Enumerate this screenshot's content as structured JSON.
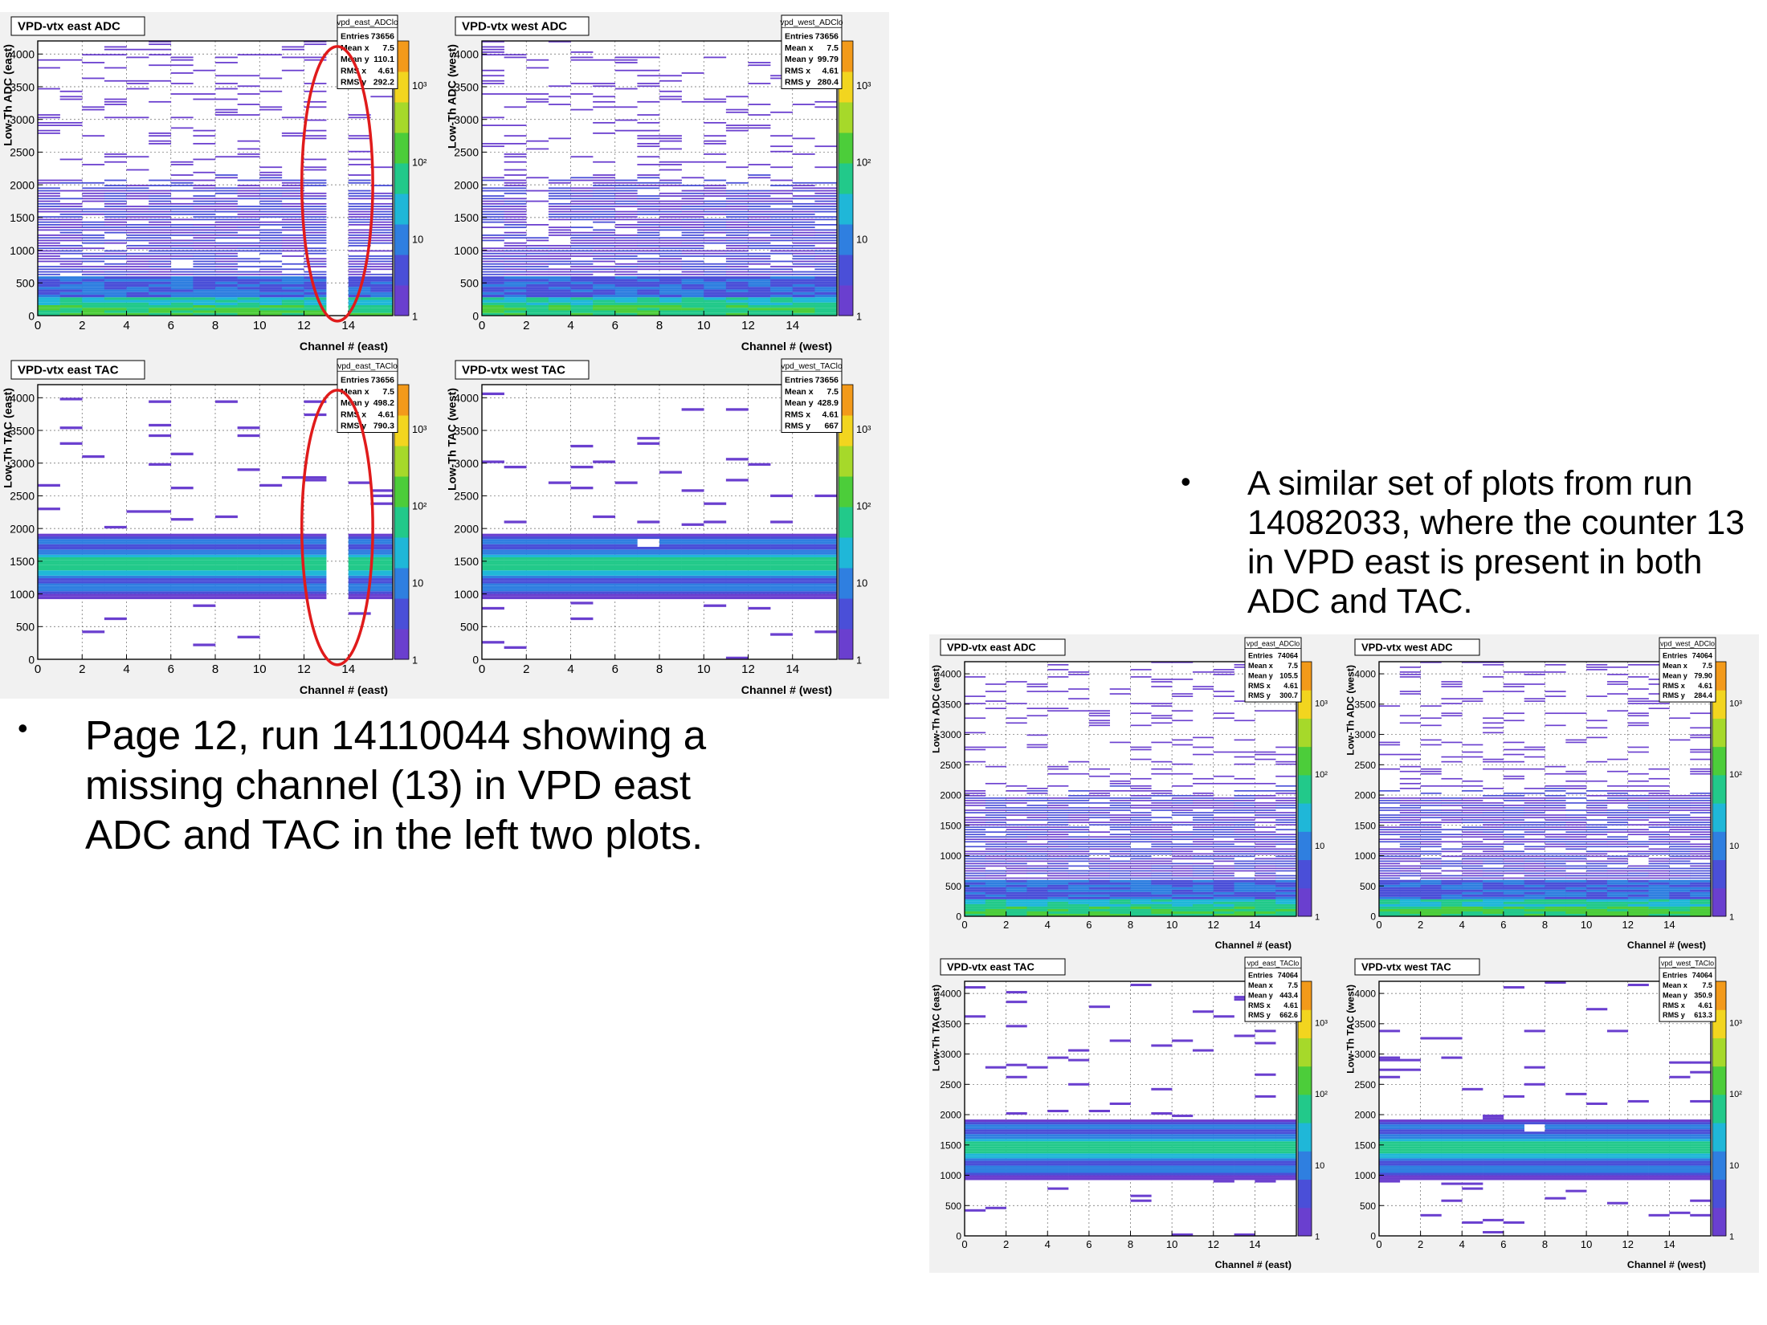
{
  "notes": {
    "left": {
      "bullet": "•",
      "text": "Page 12, run 14110044 showing a missing channel (13) in VPD east ADC and TAC in the left two plots."
    },
    "right": {
      "bullet": "•",
      "text": "A similar set of plots from run 14082033, where the counter 13 in VPD east is present in both ADC and TAC."
    }
  },
  "colors": {
    "figure_background": "#f1f1f1",
    "highlight_ellipse": "#e01b1b",
    "palette": [
      "#6a3fcf",
      "#4a4fd8",
      "#2f7fe0",
      "#1fb7d8",
      "#22c98a",
      "#4ccd3a",
      "#a6d92a",
      "#f2d51f",
      "#f39a1a"
    ]
  },
  "chart_data": [
    {
      "type": "heatmap",
      "figure": "left",
      "title": "VPD-vtx east ADC",
      "stats": {
        "name": "vpd_east_ADClo",
        "rows": [
          [
            "Entries",
            "73656"
          ],
          [
            "Mean x",
            "7.5"
          ],
          [
            "Mean y",
            "110.1"
          ],
          [
            "RMS x",
            "4.61"
          ],
          [
            "RMS y",
            "292.2"
          ]
        ]
      },
      "xlabel": "Channel # (east)",
      "ylabel": "Low-Th ADC (east)",
      "x_ticks": [
        "0",
        "2",
        "4",
        "6",
        "8",
        "10",
        "12",
        "14"
      ],
      "y_ticks": [
        "0",
        "500",
        "1000",
        "1500",
        "2000",
        "2500",
        "3000",
        "3500",
        "4000"
      ],
      "xlim": [
        0,
        16
      ],
      "ylim": [
        0,
        4200
      ],
      "z_ticks": [
        "1",
        "10",
        "10²",
        "10³"
      ],
      "pattern": "adc",
      "empty_channels": [
        13
      ],
      "highlight_channel": 13,
      "seed": 11
    },
    {
      "type": "heatmap",
      "figure": "left",
      "title": "VPD-vtx west ADC",
      "stats": {
        "name": "vpd_west_ADClo",
        "rows": [
          [
            "Entries",
            "73656"
          ],
          [
            "Mean x",
            "7.5"
          ],
          [
            "Mean y",
            "99.79"
          ],
          [
            "RMS x",
            "4.61"
          ],
          [
            "RMS y",
            "280.4"
          ]
        ]
      },
      "xlabel": "Channel # (west)",
      "ylabel": "Low-Th ADC (west)",
      "x_ticks": [
        "0",
        "2",
        "4",
        "6",
        "8",
        "10",
        "12",
        "14"
      ],
      "y_ticks": [
        "0",
        "500",
        "1000",
        "1500",
        "2000",
        "2500",
        "3000",
        "3500",
        "4000"
      ],
      "xlim": [
        0,
        16
      ],
      "ylim": [
        0,
        4200
      ],
      "z_ticks": [
        "1",
        "10",
        "10²",
        "10³"
      ],
      "pattern": "adc",
      "empty_channels": [],
      "notch_channel": 2,
      "seed": 23
    },
    {
      "type": "heatmap",
      "figure": "left",
      "title": "VPD-vtx east TAC",
      "stats": {
        "name": "vpd_east_TAClo",
        "rows": [
          [
            "Entries",
            "73656"
          ],
          [
            "Mean x",
            "7.5"
          ],
          [
            "Mean y",
            "498.2"
          ],
          [
            "RMS x",
            "4.61"
          ],
          [
            "RMS y",
            "790.3"
          ]
        ]
      },
      "xlabel": "Channel # (east)",
      "ylabel": "Low-Th TAC (east)",
      "x_ticks": [
        "0",
        "2",
        "4",
        "6",
        "8",
        "10",
        "12",
        "14"
      ],
      "y_ticks": [
        "0",
        "500",
        "1000",
        "1500",
        "2000",
        "2500",
        "3000",
        "3500",
        "4000"
      ],
      "xlim": [
        0,
        16
      ],
      "ylim": [
        0,
        4200
      ],
      "z_ticks": [
        "1",
        "10",
        "10²",
        "10³"
      ],
      "pattern": "tac",
      "empty_channels": [
        13
      ],
      "highlight_channel": 13,
      "seed": 37
    },
    {
      "type": "heatmap",
      "figure": "left",
      "title": "VPD-vtx west TAC",
      "stats": {
        "name": "vpd_west_TAClo",
        "rows": [
          [
            "Entries",
            "73656"
          ],
          [
            "Mean x",
            "7.5"
          ],
          [
            "Mean y",
            "428.9"
          ],
          [
            "RMS x",
            "4.61"
          ],
          [
            "RMS y",
            "667"
          ]
        ]
      },
      "xlabel": "Channel # (west)",
      "ylabel": "Low-Th TAC (west)",
      "x_ticks": [
        "0",
        "2",
        "4",
        "6",
        "8",
        "10",
        "12",
        "14"
      ],
      "y_ticks": [
        "0",
        "500",
        "1000",
        "1500",
        "2000",
        "2500",
        "3000",
        "3500",
        "4000"
      ],
      "xlim": [
        0,
        16
      ],
      "ylim": [
        0,
        4200
      ],
      "z_ticks": [
        "1",
        "10",
        "10²",
        "10³"
      ],
      "pattern": "tac",
      "empty_channels": [],
      "notch_channel": 7,
      "seed": 41
    },
    {
      "type": "heatmap",
      "figure": "right",
      "title": "VPD-vtx east ADC",
      "stats": {
        "name": "vpd_east_ADClo",
        "rows": [
          [
            "Entries",
            "74064"
          ],
          [
            "Mean x",
            "7.5"
          ],
          [
            "Mean y",
            "105.5"
          ],
          [
            "RMS x",
            "4.61"
          ],
          [
            "RMS y",
            "300.7"
          ]
        ]
      },
      "xlabel": "Channel # (east)",
      "ylabel": "Low-Th ADC (east)",
      "x_ticks": [
        "0",
        "2",
        "4",
        "6",
        "8",
        "10",
        "12",
        "14"
      ],
      "y_ticks": [
        "0",
        "500",
        "1000",
        "1500",
        "2000",
        "2500",
        "3000",
        "3500",
        "4000"
      ],
      "xlim": [
        0,
        16
      ],
      "ylim": [
        0,
        4200
      ],
      "z_ticks": [
        "1",
        "10",
        "10²",
        "10³"
      ],
      "pattern": "adc",
      "empty_channels": [],
      "seed": 53
    },
    {
      "type": "heatmap",
      "figure": "right",
      "title": "VPD-vtx west ADC",
      "stats": {
        "name": "vpd_west_ADClo",
        "rows": [
          [
            "Entries",
            "74064"
          ],
          [
            "Mean x",
            "7.5"
          ],
          [
            "Mean y",
            "79.90"
          ],
          [
            "RMS x",
            "4.61"
          ],
          [
            "RMS y",
            "284.4"
          ]
        ]
      },
      "xlabel": "Channel # (west)",
      "ylabel": "Low-Th ADC (west)",
      "x_ticks": [
        "0",
        "2",
        "4",
        "6",
        "8",
        "10",
        "12",
        "14"
      ],
      "y_ticks": [
        "0",
        "500",
        "1000",
        "1500",
        "2000",
        "2500",
        "3000",
        "3500",
        "4000"
      ],
      "xlim": [
        0,
        16
      ],
      "ylim": [
        0,
        4200
      ],
      "z_ticks": [
        "1",
        "10",
        "10²",
        "10³"
      ],
      "pattern": "adc",
      "empty_channels": [],
      "seed": 67
    },
    {
      "type": "heatmap",
      "figure": "right",
      "title": "VPD-vtx east TAC",
      "stats": {
        "name": "vpd_east_TAClo",
        "rows": [
          [
            "Entries",
            "74064"
          ],
          [
            "Mean x",
            "7.5"
          ],
          [
            "Mean y",
            "443.4"
          ],
          [
            "RMS x",
            "4.61"
          ],
          [
            "RMS y",
            "662.6"
          ]
        ]
      },
      "xlabel": "Channel # (east)",
      "ylabel": "Low-Th TAC (east)",
      "x_ticks": [
        "0",
        "2",
        "4",
        "6",
        "8",
        "10",
        "12",
        "14"
      ],
      "y_ticks": [
        "0",
        "500",
        "1000",
        "1500",
        "2000",
        "2500",
        "3000",
        "3500",
        "4000"
      ],
      "xlim": [
        0,
        16
      ],
      "ylim": [
        0,
        4200
      ],
      "z_ticks": [
        "1",
        "10",
        "10²",
        "10³"
      ],
      "pattern": "tac",
      "empty_channels": [],
      "seed": 71
    },
    {
      "type": "heatmap",
      "figure": "right",
      "title": "VPD-vtx west TAC",
      "stats": {
        "name": "vpd_west_TAClo",
        "rows": [
          [
            "Entries",
            "74064"
          ],
          [
            "Mean x",
            "7.5"
          ],
          [
            "Mean y",
            "350.9"
          ],
          [
            "RMS x",
            "4.61"
          ],
          [
            "RMS y",
            "613.3"
          ]
        ]
      },
      "xlabel": "Channel # (west)",
      "ylabel": "Low-Th TAC (west)",
      "x_ticks": [
        "0",
        "2",
        "4",
        "6",
        "8",
        "10",
        "12",
        "14"
      ],
      "y_ticks": [
        "0",
        "500",
        "1000",
        "1500",
        "2000",
        "2500",
        "3000",
        "3500",
        "4000"
      ],
      "xlim": [
        0,
        16
      ],
      "ylim": [
        0,
        4200
      ],
      "z_ticks": [
        "1",
        "10",
        "10²",
        "10³"
      ],
      "pattern": "tac",
      "empty_channels": [],
      "notch_channel": 7,
      "seed": 83
    }
  ]
}
